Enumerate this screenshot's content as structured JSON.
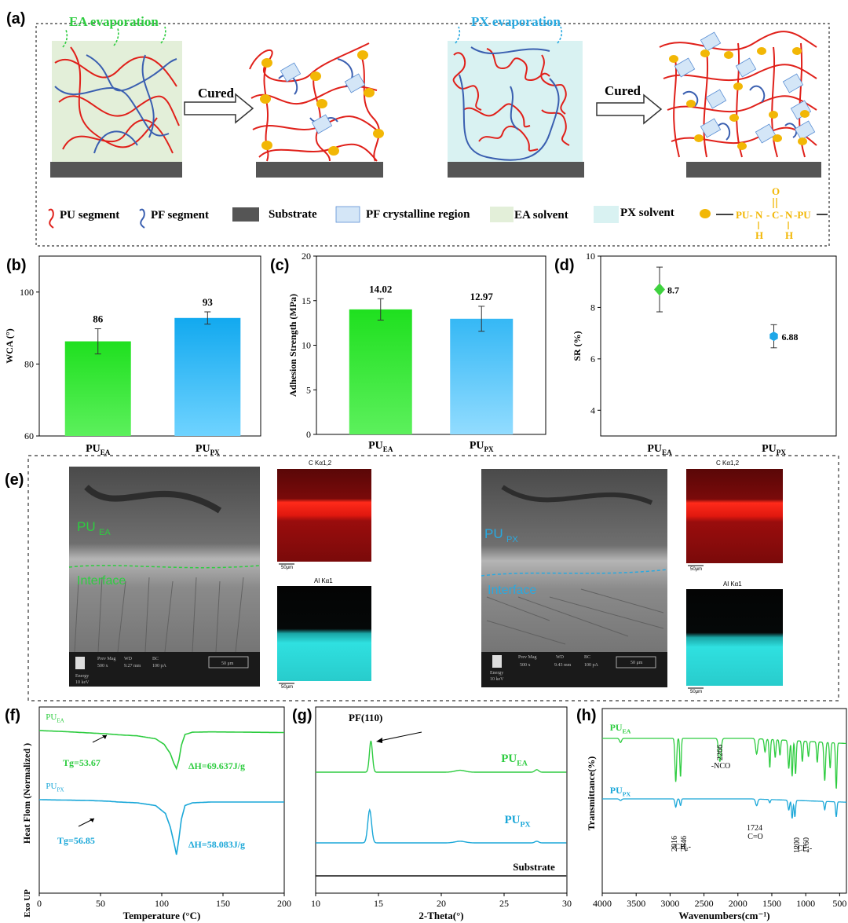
{
  "panels": {
    "a": {
      "label": "(a)",
      "ea_evaporation": "EA evaporation",
      "px_evaporation": "PX  evaporation",
      "cured": "Cured",
      "legend": {
        "pu_segment": "PU segment",
        "pf_segment": "PF segment",
        "substrate": "Substrate",
        "pf_crystalline": "PF crystalline region",
        "ea_solvent": "EA solvent",
        "px_solvent": "PX solvent",
        "urea_left": "PU-",
        "urea_n1": "N",
        "urea_c": "C",
        "urea_n2": "N",
        "urea_right": "-PU",
        "urea_o": "O",
        "urea_h": "H"
      }
    },
    "b": {
      "label": "(b)"
    },
    "c": {
      "label": "(c)"
    },
    "d": {
      "label": "(d)"
    },
    "e": {
      "label": "(e)",
      "pu_ea_main": "PU",
      "pu_ea_sub": "EA",
      "pu_px_main": "PU",
      "pu_px_sub": "PX",
      "interface": "Interface",
      "c_map_title": "C Kα1,2",
      "al_map_title": "Al Kα1",
      "map_scale": "50μm",
      "sem_scale": "50 μm",
      "sem_ea_info": {
        "h1": "Prev Mag",
        "h2": "WD",
        "h3": "BC",
        "v1": "500 x",
        "v2": "9.27 mm",
        "v3": "100 pA",
        "energy": "Energy",
        "kev": "10 keV"
      },
      "sem_px_info": {
        "h1": "Prev Mag",
        "h2": "WD",
        "h3": "BC",
        "v1": "500 x",
        "v2": "9.43 mm",
        "v3": "100 pA",
        "energy": "Energy",
        "kev": "10 keV"
      }
    },
    "f": {
      "label": "(f)"
    },
    "g": {
      "label": "(g)"
    },
    "h": {
      "label": "(h)"
    }
  },
  "colors": {
    "ea_green": "#2ecc40",
    "px_blue": "#29a9e0",
    "pu_red": "#e0201a",
    "pf_blue": "#3a5fb0",
    "node_orange": "#f2b705",
    "substrate": "#555555",
    "ea_solvent_bg": "#e3efd9",
    "px_solvent_bg": "#d9f2f2"
  },
  "chart_data": [
    {
      "id": "b",
      "type": "bar",
      "categories": [
        "PU_EA",
        "PU_PX"
      ],
      "category_main": [
        "PU",
        "PU"
      ],
      "category_sub": [
        "EA",
        "PX"
      ],
      "values": [
        86.3,
        92.8
      ],
      "errors": [
        3.5,
        1.7
      ],
      "data_labels": [
        "86",
        "93"
      ],
      "ylabel": "WCA (°)",
      "ylim": [
        60,
        110
      ],
      "yticks": [
        60,
        80,
        100
      ],
      "colors": [
        "#33e633",
        "#1aaef0"
      ]
    },
    {
      "id": "c",
      "type": "bar",
      "categories": [
        "PU_EA",
        "PU_PX"
      ],
      "category_main": [
        "PU",
        "PU"
      ],
      "category_sub": [
        "EA",
        "PX"
      ],
      "values": [
        14.02,
        12.97
      ],
      "errors": [
        1.2,
        1.4
      ],
      "data_labels": [
        "14.02",
        "12.97"
      ],
      "ylabel": "Adhesion Strength  (MPa)",
      "ylim": [
        0,
        20
      ],
      "yticks": [
        0,
        5,
        10,
        15,
        20
      ],
      "colors": [
        "#22dd22",
        "#49c4f5"
      ]
    },
    {
      "id": "d",
      "type": "scatter",
      "categories": [
        "PU_EA",
        "PU_PX"
      ],
      "category_main": [
        "PU",
        "PU"
      ],
      "category_sub": [
        "EA",
        "PX"
      ],
      "values": [
        8.7,
        6.88
      ],
      "errors": [
        0.87,
        0.45
      ],
      "data_labels": [
        "8.7",
        "6.88"
      ],
      "markers": [
        "diamond",
        "hexagon"
      ],
      "ylabel": "SR (%)",
      "ylim": [
        3,
        10
      ],
      "yticks": [
        4,
        6,
        8,
        10
      ],
      "colors": [
        "#3fd23f",
        "#1ea7e8"
      ]
    },
    {
      "id": "f",
      "type": "line",
      "xlabel": "Temperature  (°C)",
      "ylabel": "Heat Flom (Normalized )",
      "xlim": [
        0,
        200
      ],
      "xticks": [
        0,
        50,
        100,
        150,
        200
      ],
      "exo_label": "Exo UP",
      "series": [
        {
          "name_main": "PU",
          "name_sub": "EA",
          "color": "#2ecc40",
          "offset": 1.0,
          "x": [
            0,
            20,
            40,
            55,
            65,
            80,
            95,
            102,
            107,
            110,
            112,
            114,
            116,
            119,
            125,
            140,
            170,
            200
          ],
          "y": [
            0.0,
            -0.03,
            -0.07,
            -0.1,
            -0.13,
            -0.16,
            -0.25,
            -0.42,
            -0.7,
            -1.0,
            -1.15,
            -0.9,
            -0.45,
            -0.12,
            -0.05,
            -0.04,
            -0.05,
            -0.06
          ],
          "tg_label": "Tg=53.67",
          "dh_label": "ΔH=69.637J/g"
        },
        {
          "name_main": "PU",
          "name_sub": "PX",
          "color": "#1aa7d8",
          "offset": 0.0,
          "x": [
            0,
            20,
            40,
            57,
            65,
            80,
            95,
            103,
            107,
            110,
            112,
            114,
            116,
            119,
            125,
            140,
            170,
            200
          ],
          "y": [
            0.0,
            -0.01,
            -0.02,
            -0.04,
            -0.06,
            -0.08,
            -0.15,
            -0.35,
            -0.7,
            -1.1,
            -1.4,
            -1.0,
            -0.5,
            -0.15,
            -0.08,
            -0.06,
            -0.06,
            -0.06
          ],
          "tg_label": "Tg=56.85",
          "dh_label": "ΔH=58.083J/g"
        }
      ]
    },
    {
      "id": "g",
      "type": "line",
      "xlabel": "2-Theta(°)",
      "xlim": [
        10,
        30
      ],
      "xticks": [
        10,
        15,
        20,
        25,
        30
      ],
      "annotation": "PF(110)",
      "series": [
        {
          "name_main": "PU",
          "name_sub": "EA",
          "color": "#2ecc40",
          "peaks": [
            [
              14.4,
              1.0,
              0.12
            ],
            [
              21.5,
              0.06,
              0.4
            ],
            [
              27.6,
              0.08,
              0.15
            ]
          ]
        },
        {
          "name_main": "PU",
          "name_sub": "PX",
          "color": "#1aa7d8",
          "peaks": [
            [
              14.3,
              1.0,
              0.15
            ],
            [
              21.5,
              0.05,
              0.4
            ],
            [
              27.6,
              0.05,
              0.15
            ]
          ]
        },
        {
          "name": "Substrate",
          "color": "#111111",
          "peaks": []
        }
      ]
    },
    {
      "id": "h",
      "type": "line",
      "xlabel": "Wavenumbers(cm⁻¹)",
      "ylabel": "Transmittance(%)",
      "xlim": [
        4000,
        400
      ],
      "xticks": [
        4000,
        3500,
        3000,
        2500,
        2000,
        1500,
        1000,
        500
      ],
      "annotations": [
        "2266",
        "-NCO",
        "2916",
        "2846",
        "-CH₂-",
        "1724",
        "C=O",
        "1200",
        "1160",
        "-CF₂-"
      ],
      "series": [
        {
          "name_main": "PU",
          "name_sub": "EA",
          "color": "#2ecc40",
          "dips": [
            [
              3730,
              0.08,
              15
            ],
            [
              2916,
              0.85,
              12
            ],
            [
              2846,
              0.75,
              10
            ],
            [
              2266,
              0.45,
              18
            ],
            [
              1724,
              0.3,
              15
            ],
            [
              1600,
              0.25,
              12
            ],
            [
              1530,
              0.55,
              10
            ],
            [
              1450,
              0.35,
              10
            ],
            [
              1380,
              0.3,
              10
            ],
            [
              1250,
              0.55,
              12
            ],
            [
              1200,
              0.7,
              10
            ],
            [
              1150,
              0.65,
              10
            ],
            [
              1050,
              0.4,
              10
            ],
            [
              960,
              0.3,
              10
            ],
            [
              830,
              0.4,
              10
            ],
            [
              720,
              0.75,
              12
            ],
            [
              640,
              0.5,
              10
            ],
            [
              550,
              0.9,
              10
            ]
          ]
        },
        {
          "name_main": "PU",
          "name_sub": "PX",
          "color": "#1aa7d8",
          "dips": [
            [
              3730,
              0.05,
              15
            ],
            [
              2916,
              0.25,
              12
            ],
            [
              2846,
              0.2,
              10
            ],
            [
              1724,
              0.2,
              15
            ],
            [
              1530,
              0.1,
              10
            ],
            [
              1250,
              0.3,
              12
            ],
            [
              1200,
              0.55,
              10
            ],
            [
              1160,
              0.5,
              10
            ],
            [
              720,
              0.25,
              10
            ],
            [
              550,
              0.45,
              10
            ]
          ]
        }
      ]
    }
  ]
}
